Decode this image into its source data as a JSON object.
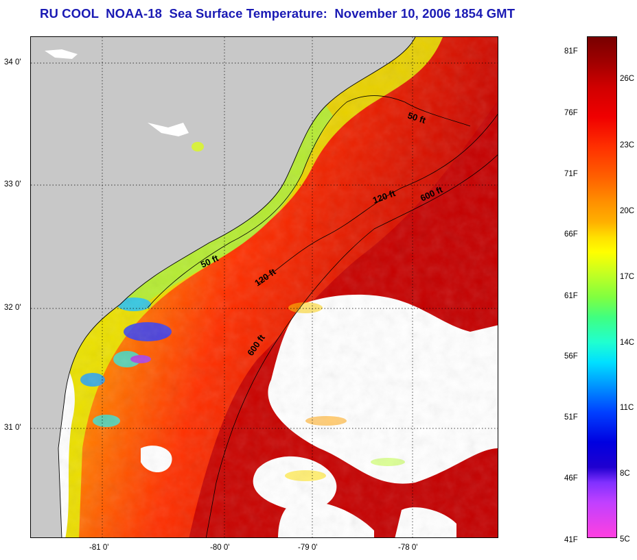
{
  "title": "RU COOL  NOAA-18  Sea Surface Temperature:  November 10, 2006 1854 GMT",
  "map": {
    "lat_ticks": [
      "34 0'",
      "33 0'",
      "32 0'",
      "31 0'"
    ],
    "lon_ticks": [
      "-81 0'",
      "-80 0'",
      "-79 0'",
      "-78 0'"
    ],
    "contour_labels": [
      "50 ft",
      "120 ft",
      "600 ft",
      "50 ft",
      "120 ft",
      "600 ft"
    ],
    "colors": {
      "land": "#c8c8c8",
      "cloud": "#ffffff",
      "warm_deep": "#c80000",
      "warm": "#e02000",
      "mid": "#ff6a00",
      "cool": "#ffe000",
      "cold": "#80ff40"
    }
  },
  "colorbar": {
    "fahrenheit_labels": [
      "81F",
      "76F",
      "71F",
      "66F",
      "61F",
      "56F",
      "51F",
      "46F",
      "41F"
    ],
    "celsius_labels": [
      "26C",
      "23C",
      "20C",
      "17C",
      "14C",
      "11C",
      "8C",
      "5C"
    ]
  }
}
